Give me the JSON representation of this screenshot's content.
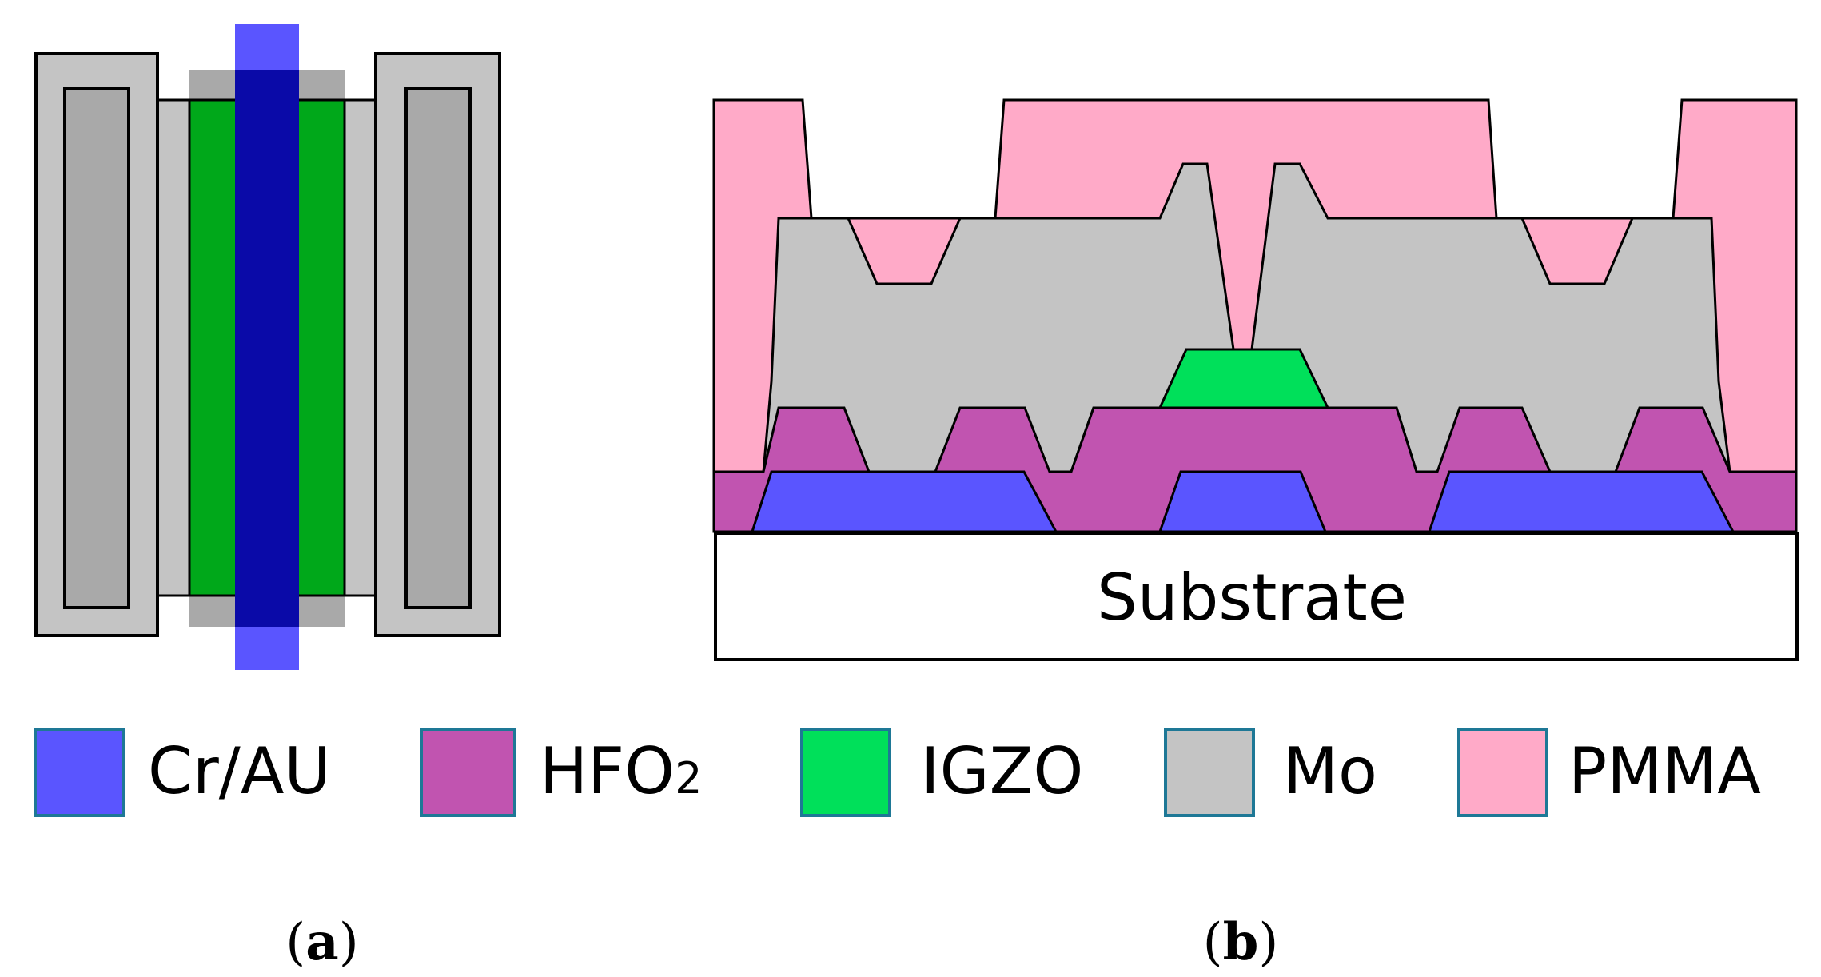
{
  "colors": {
    "cr_au": "#5a55ff",
    "cr_au_dark": "#0a0aa8",
    "hfo2": "#c154b0",
    "igzo": "#00e05a",
    "igzo_top": "#00a81a",
    "mo": "#c4c4c4",
    "mo_dark": "#a9a9a9",
    "pmma": "#ffaac8",
    "substrate": "#ffffff",
    "outline": "#000000",
    "legend_border": "#1e7896"
  },
  "panel_b": {
    "substrate_label": "Substrate"
  },
  "legend": {
    "items": [
      {
        "key": "cr_au",
        "label": "Cr/AU"
      },
      {
        "key": "hfo2",
        "label": "HFO",
        "subscript": "2"
      },
      {
        "key": "igzo",
        "label": "IGZO"
      },
      {
        "key": "mo",
        "label": "Mo"
      },
      {
        "key": "pmma",
        "label": "PMMA"
      }
    ]
  },
  "captions": {
    "a_open": "(",
    "a_letter": "a",
    "a_close": ")",
    "b_open": "(",
    "b_letter": "b",
    "b_close": ")"
  }
}
